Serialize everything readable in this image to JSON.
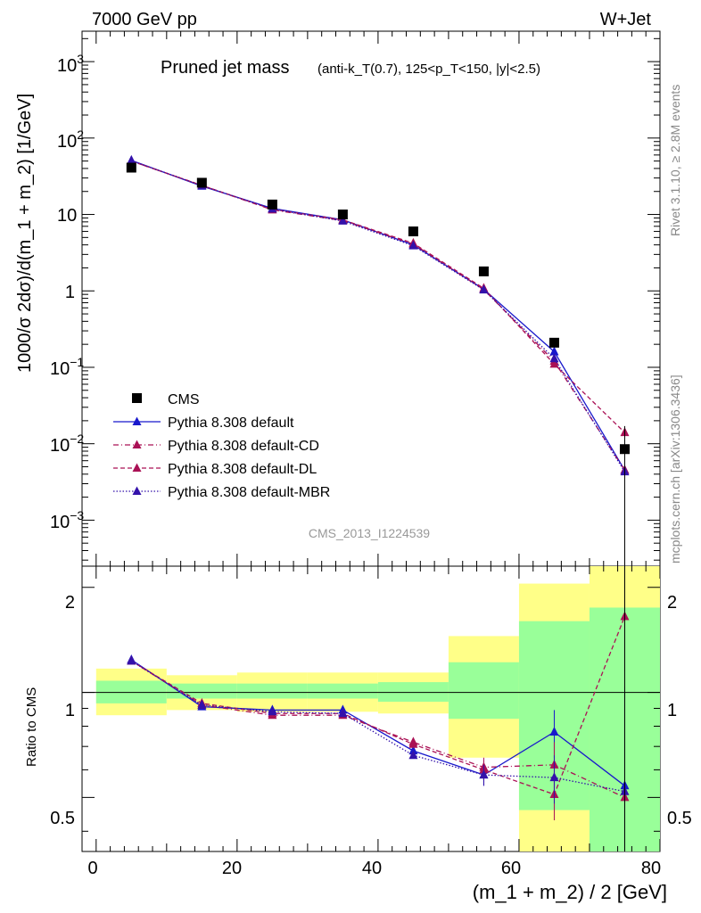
{
  "header": {
    "energy": "7000 GeV pp",
    "process": "W+Jet",
    "title_main": "Pruned jet mass",
    "title_detail": "(anti-k_T(0.7), 125<p_T<150, |y|<2.5)",
    "analysis": "CMS_2013_I1224539",
    "side_rivet": "Rivet 3.1.10, ≥ 2.8M events",
    "side_mcplots": "mcplots.cern.ch [arXiv:1306.3436]"
  },
  "axes": {
    "top_ylabel": "1000/σ 2dσ)/d(m_1 + m_2) [1/GeV]",
    "bottom_ylabel": "Ratio to CMS",
    "xlabel": "(m_1 + m_2) / 2 [GeV]",
    "x_ticks": [
      "0",
      "20",
      "40",
      "60",
      "80"
    ],
    "ratio_ticks": [
      "0.5",
      "1",
      "2"
    ],
    "top_ticks": [
      "10",
      "10",
      "1",
      "10",
      "10",
      "10",
      "10"
    ]
  },
  "legend": {
    "cms": "CMS",
    "default": "Pythia 8.308 default",
    "cd": "Pythia 8.308 default-CD",
    "dl": "Pythia 8.308 default-DL",
    "mbr": "Pythia 8.308 default-MBR"
  },
  "chart_data": {
    "type": "line",
    "x_range": [
      -2,
      80
    ],
    "top_y_range": [
      0.00025,
      2500
    ],
    "top_y_scale": "log",
    "ratio_y_range": [
      0.35,
      2.3
    ],
    "ratio_y_scale": "log",
    "x_bins": [
      [
        0,
        10
      ],
      [
        10,
        20
      ],
      [
        20,
        30
      ],
      [
        30,
        40
      ],
      [
        40,
        50
      ],
      [
        50,
        60
      ],
      [
        60,
        70
      ],
      [
        70,
        80
      ]
    ],
    "x": [
      5,
      15,
      25,
      35,
      45,
      55,
      65,
      75
    ],
    "cms": {
      "name": "CMS",
      "values": [
        41,
        26,
        13.5,
        10,
        6,
        1.8,
        0.21,
        0.0085
      ],
      "errors": [
        1.5,
        1,
        0.5,
        0.5,
        0.3,
        0.1,
        0.02,
        0.0085
      ],
      "ratio_band_inner": [
        [
          0.93,
          1.08
        ],
        [
          0.96,
          1.06
        ],
        [
          0.96,
          1.06
        ],
        [
          0.96,
          1.06
        ],
        [
          0.94,
          1.07
        ],
        [
          0.84,
          1.22
        ],
        [
          0.46,
          1.6
        ],
        [
          0.3,
          1.75
        ]
      ],
      "ratio_band_outer": [
        [
          0.86,
          1.17
        ],
        [
          0.89,
          1.12
        ],
        [
          0.88,
          1.14
        ],
        [
          0.88,
          1.14
        ],
        [
          0.87,
          1.14
        ],
        [
          0.65,
          1.45
        ],
        [
          0.35,
          2.05
        ],
        [
          0.3,
          2.3
        ]
      ],
      "color_inner": "#99ff99",
      "color_outer": "#ffff88"
    },
    "series": [
      {
        "name": "Pythia 8.308 default",
        "color": "#1818cc",
        "dash": "solid",
        "values": [
          51,
          23.5,
          12,
          8.5,
          4,
          1.05,
          0.16,
          0.0045
        ],
        "ratio": [
          1.24,
          0.91,
          0.89,
          0.89,
          0.68,
          0.58,
          0.77,
          0.54
        ],
        "ratio_err": [
          0.01,
          0.01,
          0.01,
          0.01,
          0.02,
          0.04,
          0.12,
          0.5
        ]
      },
      {
        "name": "Pythia 8.308 default-CD",
        "color": "#aa1155",
        "dash": "dashdot",
        "values": [
          50,
          24,
          11.5,
          8.3,
          4.1,
          1.04,
          0.12,
          0.0045
        ],
        "ratio": [
          1.23,
          0.92,
          0.86,
          0.86,
          0.72,
          0.61,
          0.62,
          0.5
        ],
        "ratio_err": [
          0.01,
          0.01,
          0.01,
          0.01,
          0.02,
          0.04,
          0.1,
          0.4
        ]
      },
      {
        "name": "Pythia 8.308 default-DL",
        "color": "#aa1155",
        "dash": "dashed",
        "values": [
          50,
          24,
          11.7,
          8.5,
          4.2,
          1.08,
          0.11,
          0.014
        ],
        "ratio": [
          1.23,
          0.93,
          0.87,
          0.87,
          0.71,
          0.6,
          0.51,
          1.65
        ],
        "ratio_err": [
          0.01,
          0.01,
          0.01,
          0.01,
          0.02,
          0.04,
          0.08,
          0.5
        ]
      },
      {
        "name": "Pythia 8.308 default-MBR",
        "color": "#3311aa",
        "dash": "dotted",
        "values": [
          50.5,
          23.8,
          11.8,
          8.2,
          3.9,
          1.03,
          0.13,
          0.0043
        ],
        "ratio": [
          1.23,
          0.92,
          0.88,
          0.87,
          0.66,
          0.58,
          0.57,
          0.52
        ],
        "ratio_err": [
          0.01,
          0.01,
          0.01,
          0.01,
          0.02,
          0.04,
          0.09,
          0.4
        ]
      }
    ]
  }
}
